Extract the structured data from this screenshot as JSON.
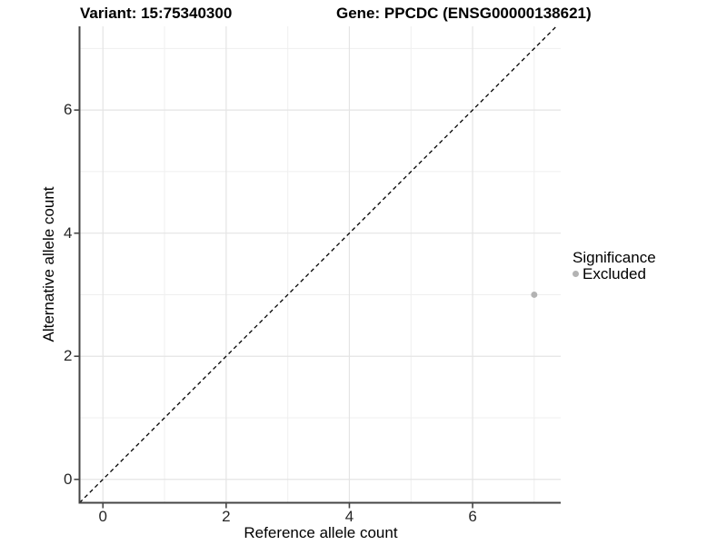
{
  "chart_data": {
    "type": "scatter",
    "title_left": "Variant: 15:75340300",
    "title_right": "Gene: PPCDC (ENSG00000138621)",
    "xlabel": "Reference allele count",
    "ylabel": "Alternative allele count",
    "xlim": [
      -0.38,
      7.43
    ],
    "ylim": [
      -0.38,
      7.36
    ],
    "x_ticks": [
      0,
      2,
      4,
      6
    ],
    "y_ticks": [
      0,
      2,
      4,
      6
    ],
    "x_tick_labels": [
      "0",
      "2",
      "4",
      "6"
    ],
    "y_tick_labels": [
      "0",
      "2",
      "4",
      "6"
    ],
    "x_minor_ticks": [
      1,
      3,
      5,
      7
    ],
    "y_minor_ticks": [
      1,
      3,
      5,
      7
    ],
    "grid": true,
    "reference_line": {
      "kind": "identity",
      "slope": 1,
      "intercept": 0,
      "style": "dashed",
      "color": "#000000"
    },
    "series": [
      {
        "name": "Excluded",
        "color": "#b3b3b3",
        "points": [
          {
            "x": 7,
            "y": 3
          }
        ]
      }
    ],
    "legend": {
      "title": "Significance",
      "position": "right",
      "entries": [
        {
          "label": "Excluded",
          "color": "#b3b3b3"
        }
      ]
    },
    "colors": {
      "axis": "#454545",
      "grid_major": "#e4e4e4",
      "grid_minor": "#efefef",
      "tick_label": "#262626"
    }
  }
}
